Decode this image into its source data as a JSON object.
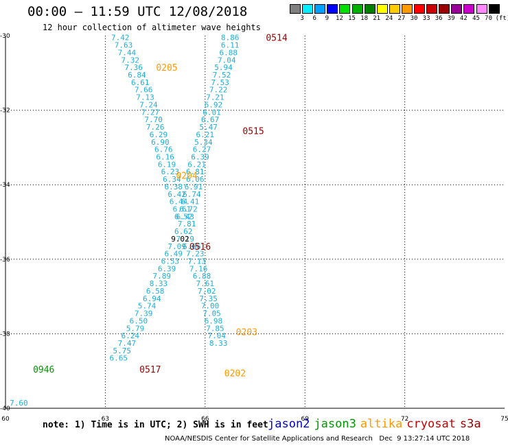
{
  "title": "00:00 – 11:59 UTC 12/08/2018",
  "subtitle": "12 hour collection of altimeter wave heights",
  "colorbar": {
    "colors": [
      "#808080",
      "#00eeff",
      "#00a0ff",
      "#0000ff",
      "#00e000",
      "#00b000",
      "#008000",
      "#ffff00",
      "#ffcc00",
      "#ff9900",
      "#ff0000",
      "#cc0000",
      "#990000",
      "#990099",
      "#cc00cc",
      "#ff88ff",
      "#000000"
    ],
    "labels": [
      "3",
      "6",
      "9",
      "12",
      "15",
      "18",
      "21",
      "24",
      "27",
      "30",
      "33",
      "36",
      "39",
      "42",
      "45",
      "70"
    ],
    "unit": "(ft)"
  },
  "note": "note: 1) Time is in UTC; 2) SWH is in feet",
  "legend": [
    {
      "name": "jason2",
      "color": "#0000cc"
    },
    {
      "name": "jason3",
      "color": "#009900"
    },
    {
      "name": "altika",
      "color": "#ff9900"
    },
    {
      "name": "cryosat",
      "color": "#cc0000"
    },
    {
      "name": "s3a",
      "color": "#990000"
    }
  ],
  "credit": "NOAA/NESDIS Center for Satellite Applications and Research   Dec  9 13:27:14 UTC 2018",
  "chart_data": {
    "type": "scatter",
    "title": "00:00 – 11:59 UTC 12/08/2018",
    "subtitle": "12 hour collection of altimeter wave heights",
    "xlim": [
      60,
      75
    ],
    "ylim": [
      -40,
      -30
    ],
    "x_ticks": [
      "60",
      "63",
      "66",
      "69",
      "72",
      "75"
    ],
    "y_ticks": [
      "-30",
      "-32",
      "-34",
      "-36",
      "-38",
      "-40"
    ],
    "grid": true,
    "value_color": "#1ab0d8",
    "track_values": [
      {
        "x": 63.45,
        "y": -30.05,
        "v": "7.42"
      },
      {
        "x": 63.55,
        "y": -30.25,
        "v": "7.63"
      },
      {
        "x": 63.65,
        "y": -30.45,
        "v": "7.44"
      },
      {
        "x": 63.75,
        "y": -30.65,
        "v": "7.32"
      },
      {
        "x": 63.85,
        "y": -30.85,
        "v": "7.36"
      },
      {
        "x": 63.95,
        "y": -31.05,
        "v": "6.84"
      },
      {
        "x": 64.05,
        "y": -31.25,
        "v": "6.61"
      },
      {
        "x": 64.15,
        "y": -31.45,
        "v": "7.66"
      },
      {
        "x": 64.2,
        "y": -31.65,
        "v": "7.13"
      },
      {
        "x": 64.3,
        "y": -31.85,
        "v": "7.24"
      },
      {
        "x": 64.35,
        "y": -32.05,
        "v": "7.27"
      },
      {
        "x": 64.45,
        "y": -32.25,
        "v": "7.70"
      },
      {
        "x": 64.5,
        "y": -32.45,
        "v": "7.26"
      },
      {
        "x": 64.6,
        "y": -32.65,
        "v": "6.29"
      },
      {
        "x": 64.65,
        "y": -32.85,
        "v": "6.90"
      },
      {
        "x": 64.75,
        "y": -33.05,
        "v": "6.76"
      },
      {
        "x": 64.8,
        "y": -33.25,
        "v": "6.16"
      },
      {
        "x": 64.85,
        "y": -33.45,
        "v": "6.19"
      },
      {
        "x": 64.95,
        "y": -33.65,
        "v": "6.23"
      },
      {
        "x": 65.0,
        "y": -33.85,
        "v": "6.34"
      },
      {
        "x": 65.05,
        "y": -34.05,
        "v": "6.38"
      },
      {
        "x": 65.15,
        "y": -34.25,
        "v": "6.42"
      },
      {
        "x": 65.2,
        "y": -34.45,
        "v": "6.44"
      },
      {
        "x": 65.3,
        "y": -34.65,
        "v": "6.61"
      },
      {
        "x": 65.35,
        "y": -34.85,
        "v": "6.52"
      },
      {
        "x": 65.45,
        "y": -35.05,
        "v": "7.81"
      },
      {
        "x": 65.15,
        "y": -35.65,
        "v": "7.09"
      },
      {
        "x": 65.05,
        "y": -35.85,
        "v": "6.49"
      },
      {
        "x": 64.95,
        "y": -36.05,
        "v": "6.53"
      },
      {
        "x": 64.85,
        "y": -36.25,
        "v": "6.39"
      },
      {
        "x": 64.7,
        "y": -36.45,
        "v": "7.89"
      },
      {
        "x": 64.6,
        "y": -36.65,
        "v": "8.33"
      },
      {
        "x": 64.5,
        "y": -36.85,
        "v": "6.58"
      },
      {
        "x": 64.4,
        "y": -37.05,
        "v": "6.94"
      },
      {
        "x": 64.25,
        "y": -37.25,
        "v": "5.74"
      },
      {
        "x": 64.15,
        "y": -37.45,
        "v": "7.39"
      },
      {
        "x": 64.0,
        "y": -37.65,
        "v": "6.50"
      },
      {
        "x": 63.9,
        "y": -37.85,
        "v": "5.79"
      },
      {
        "x": 63.75,
        "y": -38.05,
        "v": "6.24"
      },
      {
        "x": 63.65,
        "y": -38.25,
        "v": "7.47"
      },
      {
        "x": 63.5,
        "y": -38.45,
        "v": "5.75"
      },
      {
        "x": 63.4,
        "y": -38.65,
        "v": "6.65"
      },
      {
        "x": 66.75,
        "y": -30.05,
        "v": "8.86"
      },
      {
        "x": 66.75,
        "y": -30.25,
        "v": "6.11"
      },
      {
        "x": 66.7,
        "y": -30.45,
        "v": "6.88"
      },
      {
        "x": 66.65,
        "y": -30.65,
        "v": "7.04"
      },
      {
        "x": 66.55,
        "y": -30.85,
        "v": "5.94"
      },
      {
        "x": 66.5,
        "y": -31.05,
        "v": "7.52"
      },
      {
        "x": 66.45,
        "y": -31.25,
        "v": "7.53"
      },
      {
        "x": 66.4,
        "y": -31.45,
        "v": "7.22"
      },
      {
        "x": 66.3,
        "y": -31.65,
        "v": "7.21"
      },
      {
        "x": 66.25,
        "y": -31.85,
        "v": "6.92"
      },
      {
        "x": 66.2,
        "y": -32.05,
        "v": "6.01"
      },
      {
        "x": 66.15,
        "y": -32.25,
        "v": "6.67"
      },
      {
        "x": 66.1,
        "y": -32.45,
        "v": "5.47"
      },
      {
        "x": 66.0,
        "y": -32.65,
        "v": "6.21"
      },
      {
        "x": 65.95,
        "y": -32.85,
        "v": "5.34"
      },
      {
        "x": 65.9,
        "y": -33.05,
        "v": "6.27"
      },
      {
        "x": 65.85,
        "y": -33.25,
        "v": "6.39"
      },
      {
        "x": 65.75,
        "y": -33.45,
        "v": "6.21"
      },
      {
        "x": 65.7,
        "y": -33.65,
        "v": "6.81"
      },
      {
        "x": 65.7,
        "y": -33.85,
        "v": "6.06"
      },
      {
        "x": 65.65,
        "y": -34.05,
        "v": "6.91"
      },
      {
        "x": 65.6,
        "y": -34.25,
        "v": "6.74"
      },
      {
        "x": 65.55,
        "y": -34.45,
        "v": "6.41"
      },
      {
        "x": 65.5,
        "y": -34.65,
        "v": "6.72"
      },
      {
        "x": 65.4,
        "y": -34.85,
        "v": "6.43"
      },
      {
        "x": 65.35,
        "y": -35.25,
        "v": "6.62"
      },
      {
        "x": 65.4,
        "y": -35.45,
        "v": "7.19"
      },
      {
        "x": 65.6,
        "y": -35.65,
        "v": "6.66"
      },
      {
        "x": 65.7,
        "y": -35.85,
        "v": "7.23"
      },
      {
        "x": 65.75,
        "y": -36.05,
        "v": "7.13"
      },
      {
        "x": 65.8,
        "y": -36.25,
        "v": "7.16"
      },
      {
        "x": 65.9,
        "y": -36.45,
        "v": "6.88"
      },
      {
        "x": 66.0,
        "y": -36.65,
        "v": "7.61"
      },
      {
        "x": 66.05,
        "y": -36.85,
        "v": "7.02"
      },
      {
        "x": 66.1,
        "y": -37.05,
        "v": "7.35"
      },
      {
        "x": 66.15,
        "y": -37.25,
        "v": "7.00"
      },
      {
        "x": 66.2,
        "y": -37.45,
        "v": "7.05"
      },
      {
        "x": 66.25,
        "y": -37.65,
        "v": "6.98"
      },
      {
        "x": 66.3,
        "y": -37.85,
        "v": "7.85"
      },
      {
        "x": 66.35,
        "y": -38.05,
        "v": "7.04"
      },
      {
        "x": 66.4,
        "y": -38.25,
        "v": "8.33"
      },
      {
        "x": 60.4,
        "y": -39.85,
        "v": "7.60"
      }
    ],
    "extra_values": [
      {
        "x": 65.25,
        "y": -35.45,
        "v": "9.02",
        "color": "#000000"
      }
    ],
    "pass_labels": [
      {
        "x": 68.15,
        "y": -30.05,
        "v": "0514",
        "color": "#990000"
      },
      {
        "x": 64.85,
        "y": -30.85,
        "v": "0205",
        "color": "#ff9900"
      },
      {
        "x": 67.45,
        "y": -32.55,
        "v": "0515",
        "color": "#990000"
      },
      {
        "x": 65.45,
        "y": -33.75,
        "v": "0204",
        "color": "#ff9900"
      },
      {
        "x": 65.85,
        "y": -35.65,
        "v": "0516",
        "color": "#990000"
      },
      {
        "x": 67.25,
        "y": -37.95,
        "v": "0203",
        "color": "#ff9900"
      },
      {
        "x": 61.15,
        "y": -38.95,
        "v": "0946",
        "color": "#009900"
      },
      {
        "x": 64.35,
        "y": -38.95,
        "v": "0517",
        "color": "#990000"
      },
      {
        "x": 66.9,
        "y": -39.05,
        "v": "0202",
        "color": "#ff9900"
      }
    ]
  }
}
